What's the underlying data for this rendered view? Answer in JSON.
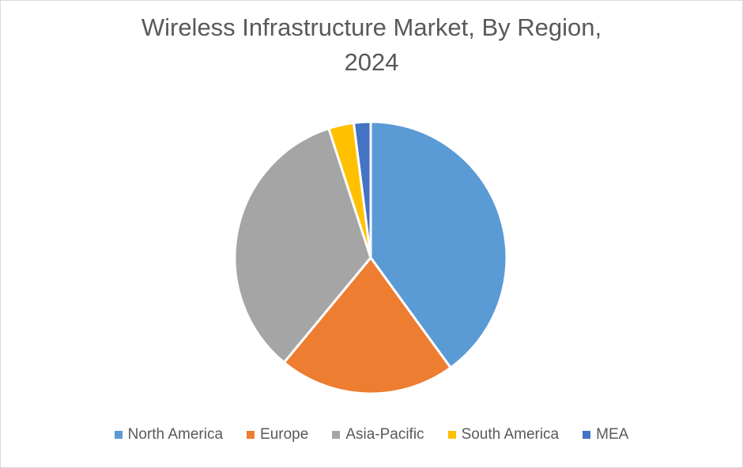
{
  "chart_data": {
    "type": "pie",
    "title_lines": [
      "Wireless Infrastructure Market, By Region,",
      "2024"
    ],
    "categories": [
      "North America",
      "Europe",
      "Asia-Pacific",
      "South America",
      "MEA"
    ],
    "values": [
      40,
      21,
      34,
      3,
      2
    ],
    "unit": "%",
    "colors": [
      "#5B9BD5",
      "#ED7D31",
      "#A5A5A5",
      "#FFC000",
      "#4472C4"
    ],
    "legend_position": "bottom",
    "data_labels": false
  }
}
